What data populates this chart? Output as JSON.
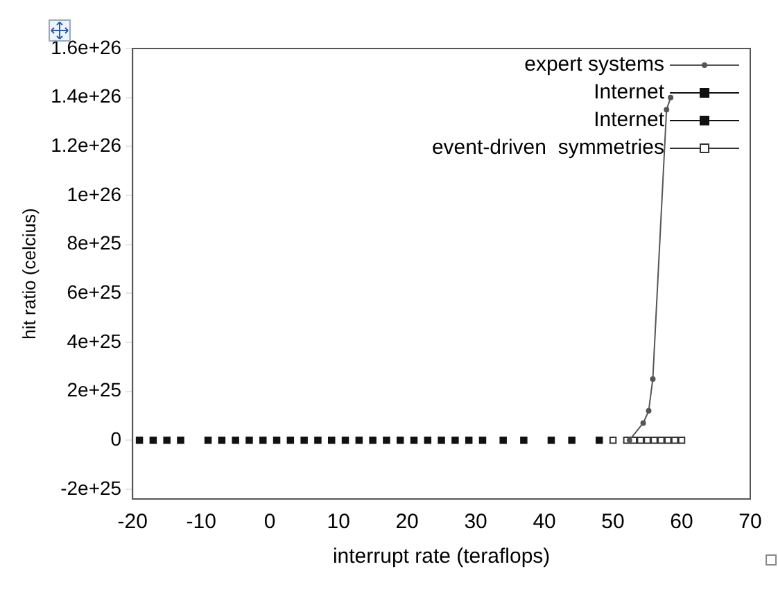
{
  "chart_data": {
    "type": "scatter",
    "xlabel": "interrupt rate (teraflops)",
    "ylabel": "hit ratio (celcius)",
    "xlim": [
      -20,
      70
    ],
    "xticks": [
      -20,
      -10,
      0,
      10,
      20,
      30,
      40,
      50,
      60,
      70
    ],
    "ylim": [
      -2.4e+25,
      1.6e+26
    ],
    "yticks": [
      {
        "value": -2e+25,
        "label": "-2e+25"
      },
      {
        "value": 0,
        "label": "0"
      },
      {
        "value": 2e+25,
        "label": "2e+25"
      },
      {
        "value": 4e+25,
        "label": "4e+25"
      },
      {
        "value": 6e+25,
        "label": "6e+25"
      },
      {
        "value": 8e+25,
        "label": "8e+25"
      },
      {
        "value": 1e+26,
        "label": "1e+26"
      },
      {
        "value": 1.2e+26,
        "label": "1.2e+26"
      },
      {
        "value": 1.4e+26,
        "label": "1.4e+26"
      },
      {
        "value": 1.6e+26,
        "label": "1.6e+26"
      }
    ],
    "grid": false,
    "legend": "top right",
    "series": [
      {
        "name": "expert systems",
        "type": "line",
        "marker": "circle",
        "color": "#555555",
        "x": [
          52.4,
          54.4,
          55.2,
          55.8,
          57.8,
          58.4
        ],
        "values": [
          0,
          7e+24,
          1.2e+25,
          2.5e+25,
          1.35e+26,
          1.4e+26
        ]
      },
      {
        "name": "Internet",
        "marker": "square",
        "color": "#111111",
        "x": [
          -19,
          -17,
          -15,
          -13,
          -9,
          -7,
          -5,
          -3,
          -1,
          1,
          3,
          5,
          7,
          9,
          11
        ],
        "values": [
          0,
          0,
          0,
          0,
          0,
          0,
          0,
          0,
          0,
          0,
          0,
          0,
          0,
          0,
          0
        ]
      },
      {
        "name": "Internet",
        "marker": "square",
        "color": "#111111",
        "x": [
          13,
          15,
          17,
          19,
          21,
          23,
          25,
          27,
          29,
          31,
          34,
          37,
          41,
          44,
          48
        ],
        "values": [
          0,
          0,
          0,
          0,
          0,
          0,
          0,
          0,
          0,
          0,
          0,
          0,
          0,
          0,
          0
        ]
      },
      {
        "name": "event-driven  symmetries",
        "marker": "square",
        "color": "#333333",
        "x": [
          50,
          52,
          53,
          54,
          55,
          56,
          57,
          58,
          59,
          60
        ],
        "values": [
          0,
          0,
          0,
          0,
          0,
          0,
          0,
          0,
          0,
          0
        ]
      }
    ]
  }
}
